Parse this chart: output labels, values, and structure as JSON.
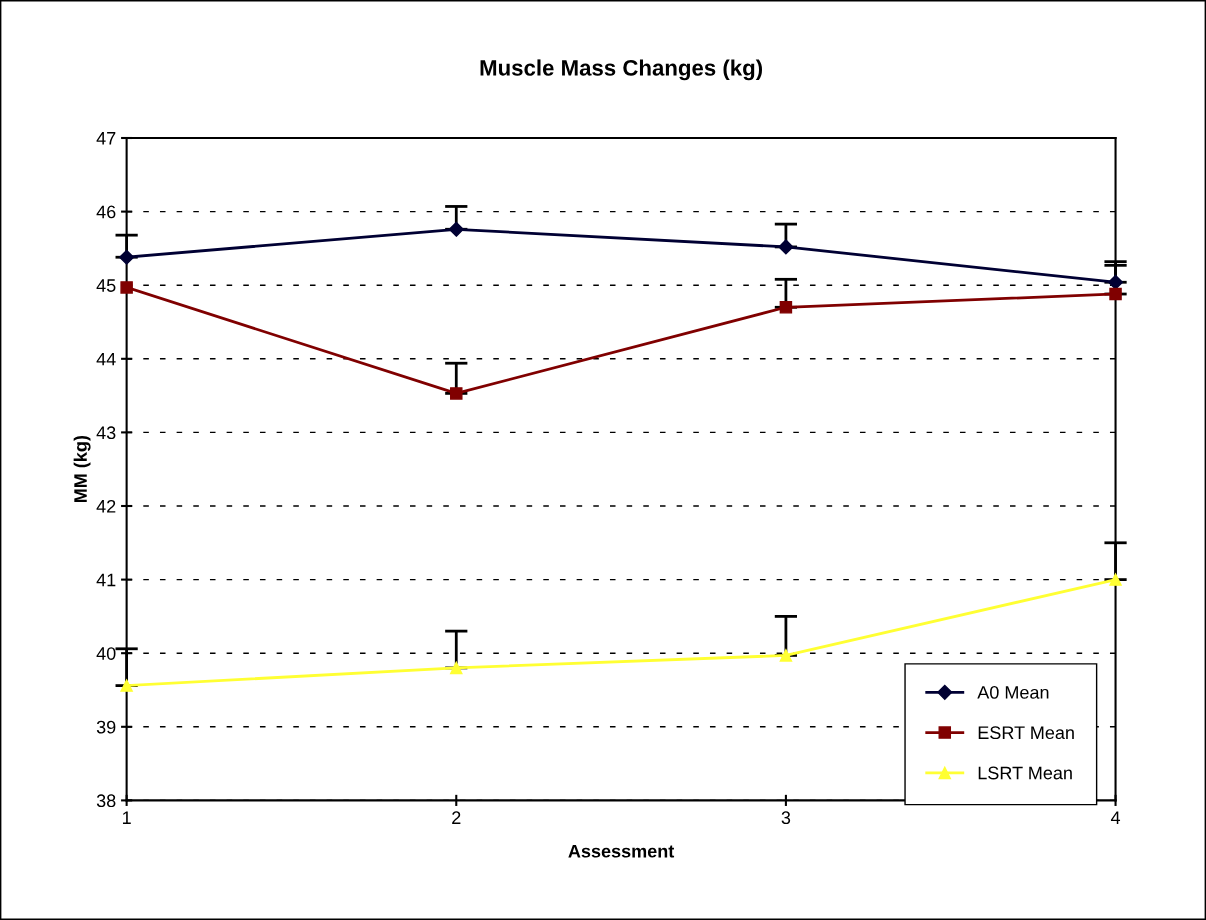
{
  "chart_data": {
    "type": "line",
    "title": "Muscle Mass Changes (kg)",
    "xlabel": "Assessment",
    "ylabel": "MM (kg)",
    "x": [
      1,
      2,
      3,
      4
    ],
    "xlim": [
      1,
      4
    ],
    "xticks": [
      1,
      2,
      3,
      4
    ],
    "ylim": [
      38,
      47
    ],
    "yticks": [
      38,
      39,
      40,
      41,
      42,
      43,
      44,
      45,
      46,
      47
    ],
    "grid": "y",
    "legend": "bottom right",
    "line_style": "solid",
    "series": [
      {
        "name": "A0 Mean",
        "color": "#000033",
        "marker": "diamond",
        "values": [
          45.38,
          45.76,
          45.52,
          45.04
        ],
        "errors": [
          [
            45.38,
            45.68
          ],
          [
            45.76,
            46.07
          ],
          [
            45.52,
            45.83
          ],
          [
            45.04,
            45.32
          ]
        ]
      },
      {
        "name": "ESRT Mean",
        "color": "#800000",
        "marker": "square",
        "values": [
          44.97,
          43.53,
          44.7,
          44.88
        ],
        "errors": [
          null,
          [
            43.53,
            43.94
          ],
          [
            44.7,
            45.08
          ],
          [
            44.88,
            45.27
          ]
        ]
      },
      {
        "name": "LSRT Mean",
        "color": "#ffff33",
        "marker": "triangle",
        "values": [
          39.56,
          39.8,
          39.97,
          41.0
        ],
        "errors": [
          [
            39.56,
            40.06
          ],
          [
            39.8,
            40.3
          ],
          [
            39.97,
            40.5
          ],
          [
            41.0,
            41.5
          ]
        ]
      }
    ]
  }
}
